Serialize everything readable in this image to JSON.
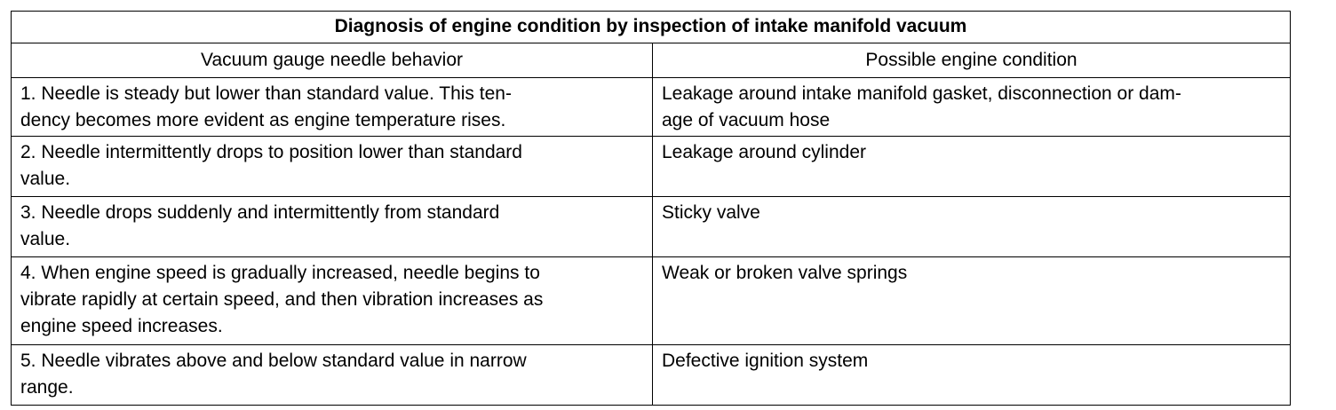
{
  "table": {
    "title": "Diagnosis of engine condition by inspection of intake manifold vacuum",
    "headers": [
      "Vacuum gauge needle behavior",
      "Possible engine condition"
    ],
    "rows": [
      [
        [
          "1. Needle is steady but lower than standard value. This ten-",
          "dency becomes more evident as engine temperature rises."
        ],
        [
          "Leakage around intake manifold gasket, disconnection or dam-",
          "age of vacuum hose"
        ]
      ],
      [
        [
          "2. Needle intermittently drops to position lower than standard",
          "value."
        ],
        [
          "Leakage around cylinder"
        ]
      ],
      [
        [
          "3. Needle drops suddenly and intermittently from standard",
          "value."
        ],
        [
          "Sticky valve"
        ]
      ],
      [
        [
          "4. When engine speed is gradually increased, needle begins to",
          "vibrate rapidly at certain speed, and then vibration increases as",
          "engine speed increases."
        ],
        [
          "Weak or broken valve springs"
        ]
      ],
      [
        [
          "5. Needle vibrates above and below standard value in narrow",
          "range."
        ],
        [
          "Defective ignition system"
        ]
      ]
    ]
  }
}
